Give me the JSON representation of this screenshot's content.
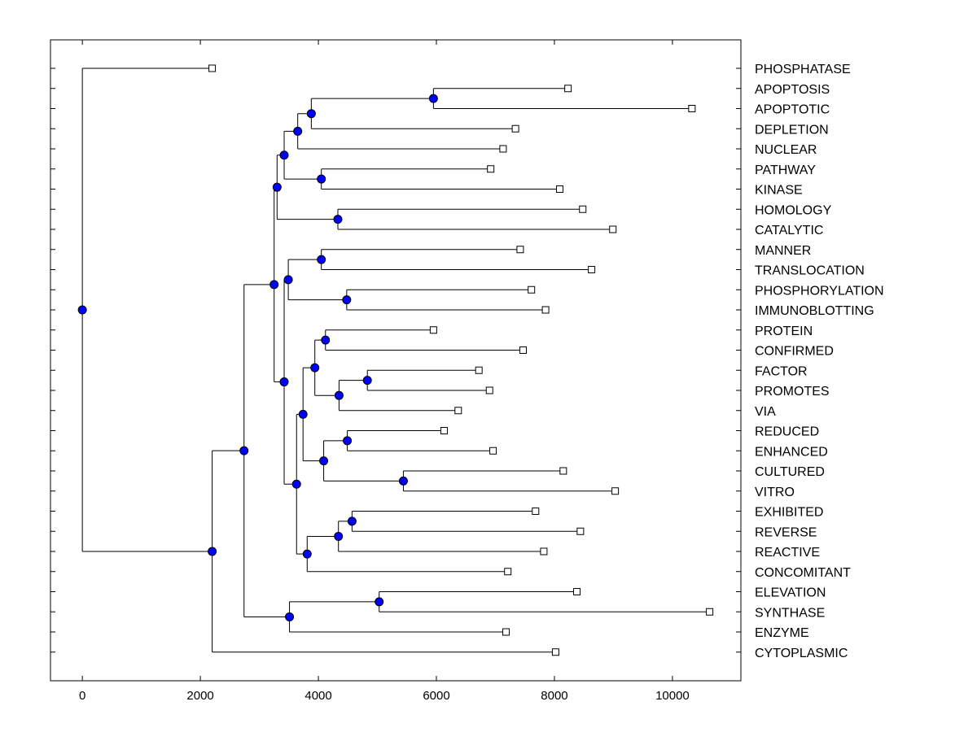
{
  "chart_data": {
    "type": "dendrogram",
    "xlim": [
      -540,
      11160
    ],
    "xticks": [
      0,
      2000,
      4000,
      6000,
      8000,
      10000
    ],
    "xtick_labels": [
      "0",
      "2000",
      "4000",
      "6000",
      "8000",
      "10000"
    ],
    "node_color": "#0000ff",
    "leaves": [
      {
        "label": "PHOSPHATASE",
        "x": 2200
      },
      {
        "label": "APOPTOSIS",
        "x": 8230
      },
      {
        "label": "APOPTOTIC",
        "x": 10330
      },
      {
        "label": "DEPLETION",
        "x": 7340
      },
      {
        "label": "NUCLEAR",
        "x": 7130
      },
      {
        "label": "PATHWAY",
        "x": 6920
      },
      {
        "label": "KINASE",
        "x": 8090
      },
      {
        "label": "HOMOLOGY",
        "x": 8480
      },
      {
        "label": "CATALYTIC",
        "x": 8990
      },
      {
        "label": "MANNER",
        "x": 7420
      },
      {
        "label": "TRANSLOCATION",
        "x": 8630
      },
      {
        "label": "PHOSPHORYLATION",
        "x": 7610
      },
      {
        "label": "IMMUNOBLOTTING",
        "x": 7850
      },
      {
        "label": "PROTEIN",
        "x": 5950
      },
      {
        "label": "CONFIRMED",
        "x": 7470
      },
      {
        "label": "FACTOR",
        "x": 6720
      },
      {
        "label": "PROMOTES",
        "x": 6900
      },
      {
        "label": "VIA",
        "x": 6370
      },
      {
        "label": "REDUCED",
        "x": 6130
      },
      {
        "label": "ENHANCED",
        "x": 6960
      },
      {
        "label": "CULTURED",
        "x": 8150
      },
      {
        "label": "VITRO",
        "x": 9030
      },
      {
        "label": "EXHIBITED",
        "x": 7680
      },
      {
        "label": "REVERSE",
        "x": 8440
      },
      {
        "label": "REACTIVE",
        "x": 7820
      },
      {
        "label": "CONCOMITANT",
        "x": 7210
      },
      {
        "label": "ELEVATION",
        "x": 8380
      },
      {
        "label": "SYNTHASE",
        "x": 10630
      },
      {
        "label": "ENZYME",
        "x": 7180
      },
      {
        "label": "CYTOPLASMIC",
        "x": 8020
      }
    ],
    "nodes": [
      {
        "id": "n1",
        "x": 5950,
        "children": [
          "L1",
          "L2"
        ]
      },
      {
        "id": "n2",
        "x": 3880,
        "children": [
          "n1",
          "L3"
        ]
      },
      {
        "id": "n3",
        "x": 3650,
        "children": [
          "n2",
          "L4"
        ]
      },
      {
        "id": "n4",
        "x": 4050,
        "children": [
          "L5",
          "L6"
        ]
      },
      {
        "id": "n5",
        "x": 3420,
        "children": [
          "n3",
          "n4"
        ]
      },
      {
        "id": "n6",
        "x": 4330,
        "children": [
          "L7",
          "L8"
        ]
      },
      {
        "id": "n7",
        "x": 3300,
        "children": [
          "n5",
          "n6"
        ]
      },
      {
        "id": "n8",
        "x": 4050,
        "children": [
          "L9",
          "L10"
        ]
      },
      {
        "id": "n9",
        "x": 4480,
        "children": [
          "L11",
          "L12"
        ]
      },
      {
        "id": "n10",
        "x": 3490,
        "children": [
          "n8",
          "n9"
        ]
      },
      {
        "id": "n11",
        "x": 4120,
        "children": [
          "L13",
          "L14"
        ]
      },
      {
        "id": "n12",
        "x": 4830,
        "children": [
          "L15",
          "L16"
        ]
      },
      {
        "id": "n13",
        "x": 4350,
        "children": [
          "n12",
          "L17"
        ]
      },
      {
        "id": "n14",
        "x": 3940,
        "children": [
          "n11",
          "n13"
        ]
      },
      {
        "id": "n15",
        "x": 4490,
        "children": [
          "L18",
          "L19"
        ]
      },
      {
        "id": "n16",
        "x": 5440,
        "children": [
          "L20",
          "L21"
        ]
      },
      {
        "id": "n17",
        "x": 4090,
        "children": [
          "n15",
          "n16"
        ]
      },
      {
        "id": "n18",
        "x": 3740,
        "children": [
          "n14",
          "n17"
        ]
      },
      {
        "id": "n19",
        "x": 4570,
        "children": [
          "L22",
          "L23"
        ]
      },
      {
        "id": "n20",
        "x": 4340,
        "children": [
          "n19",
          "L24"
        ]
      },
      {
        "id": "n21",
        "x": 3810,
        "children": [
          "n20",
          "L25"
        ]
      },
      {
        "id": "n22",
        "x": 3630,
        "children": [
          "n18",
          "n21"
        ]
      },
      {
        "id": "n23",
        "x": 3420,
        "children": [
          "n10",
          "n22"
        ]
      },
      {
        "id": "n24",
        "x": 3250,
        "children": [
          "n7",
          "n23"
        ]
      },
      {
        "id": "n25",
        "x": 5030,
        "children": [
          "L26",
          "L27"
        ]
      },
      {
        "id": "n26",
        "x": 3510,
        "children": [
          "n25",
          "L28"
        ]
      },
      {
        "id": "n27",
        "x": 2740,
        "children": [
          "n24",
          "n26"
        ]
      },
      {
        "id": "n28",
        "x": 2200,
        "children": [
          "n27",
          "L29"
        ]
      },
      {
        "id": "n29",
        "x": 0,
        "children": [
          "L0",
          "n28"
        ]
      }
    ]
  }
}
